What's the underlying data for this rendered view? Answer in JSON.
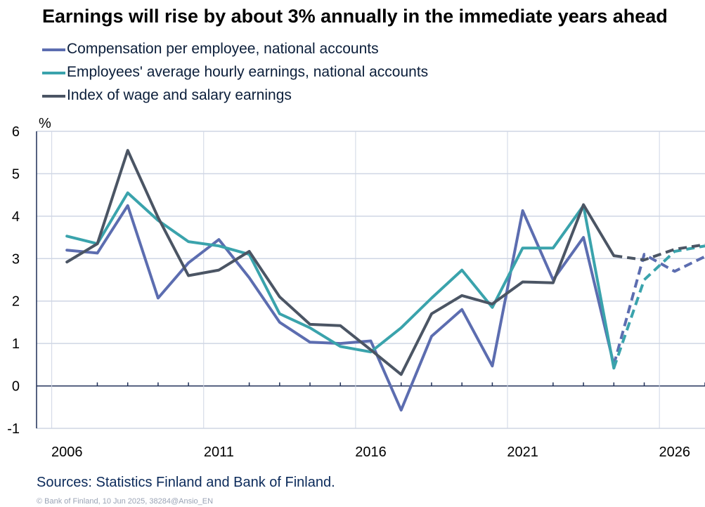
{
  "title": "Earnings will rise by about 3% annually in the immediate years ahead",
  "source": "Sources: Statistics Finland and Bank of Finland.",
  "copyright": "© Bank of Finland,  10 Jun 2025, 38284@Ansio_EN",
  "chart_data": {
    "type": "line",
    "title": "Earnings will rise by about 3% annually in the immediate years ahead",
    "ylabel": "%",
    "xlabel": "",
    "ylim": [
      -1,
      6
    ],
    "xlim": [
      2005,
      2027
    ],
    "yticks": [
      "6",
      "5",
      "4",
      "3",
      "2",
      "1",
      "0",
      "-1"
    ],
    "xticks": [
      "2006",
      "2011",
      "2016",
      "2021",
      "2026"
    ],
    "grid": "horizontal",
    "legend_position": "top-left",
    "forecast_start": 2024,
    "x": [
      2006,
      2007,
      2008,
      2009,
      2010,
      2011,
      2012,
      2013,
      2014,
      2015,
      2016,
      2017,
      2018,
      2019,
      2020,
      2021,
      2022,
      2023,
      2024,
      2025,
      2026,
      2027
    ],
    "series": [
      {
        "name": "Compensation per employee, national accounts",
        "color": "#5c6db0",
        "values": [
          3.2,
          3.13,
          4.25,
          2.07,
          2.9,
          3.45,
          2.55,
          1.5,
          1.03,
          1.0,
          1.06,
          -0.57,
          1.17,
          1.8,
          0.47,
          4.13,
          2.5,
          3.5,
          0.5,
          3.1,
          2.7,
          3.05
        ]
      },
      {
        "name": "Employees' average hourly earnings, national accounts",
        "color": "#3aa3ac",
        "values": [
          3.53,
          3.35,
          4.55,
          3.9,
          3.4,
          3.3,
          3.1,
          1.7,
          1.37,
          0.93,
          0.8,
          1.37,
          2.07,
          2.73,
          1.85,
          3.25,
          3.25,
          4.25,
          0.42,
          2.5,
          3.17,
          3.3
        ]
      },
      {
        "name": "Index of wage and salary earnings",
        "color": "#4b5564",
        "values": [
          2.92,
          3.35,
          5.55,
          3.97,
          2.6,
          2.73,
          3.17,
          2.1,
          1.45,
          1.42,
          0.85,
          0.27,
          1.7,
          2.13,
          1.93,
          2.45,
          2.43,
          4.27,
          3.07,
          2.97,
          3.22,
          3.33
        ]
      }
    ]
  }
}
